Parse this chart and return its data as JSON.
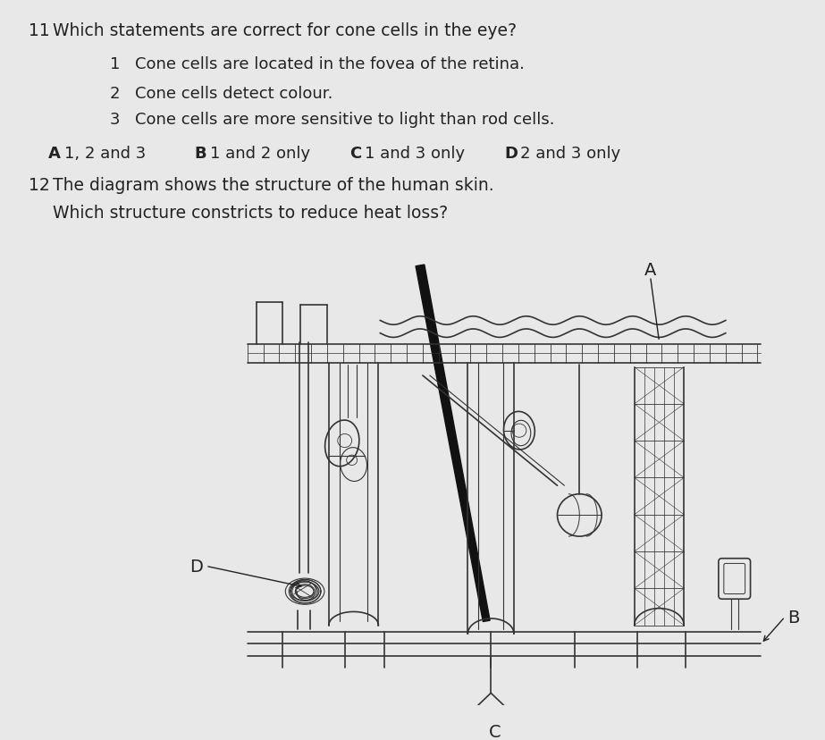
{
  "bg_color": "#e8e8e8",
  "fig_width": 9.23,
  "fig_height": 8.29,
  "dpi": 100,
  "q11_number": "11",
  "q11_text": "Which statements are correct for cone cells in the eye?",
  "statements": [
    {
      "num": "1",
      "text": "Cone cells are located in the fovea of the retina."
    },
    {
      "num": "2",
      "text": "Cone cells detect colour."
    },
    {
      "num": "3",
      "text": "Cone cells are more sensitive to light than rod cells."
    }
  ],
  "options": [
    {
      "label": "A",
      "text": "1, 2 and 3"
    },
    {
      "label": "B",
      "text": "1 and 2 only"
    },
    {
      "label": "C",
      "text": "1 and 3 only"
    },
    {
      "label": "D",
      "text": "2 and 3 only"
    }
  ],
  "q12_number": "12",
  "q12_text": "The diagram shows the structure of the human skin.",
  "q12_sub": "Which structure constricts to reduce heat loss?",
  "text_color": "#222222",
  "font_size_q": 13.5,
  "font_size_stmt": 13,
  "font_size_opt": 13,
  "diagram_label_A": "A",
  "diagram_label_B": "B",
  "diagram_label_C": "C",
  "diagram_label_D": "D"
}
